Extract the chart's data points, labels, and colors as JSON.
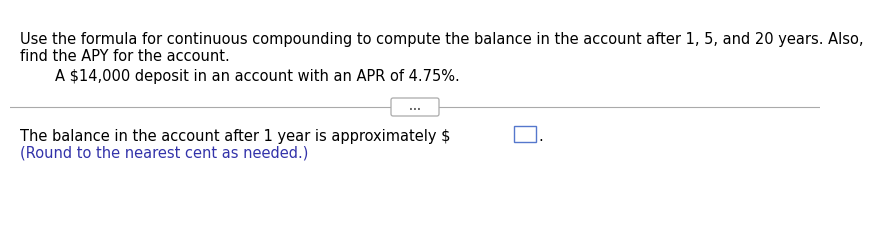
{
  "line1": "Use the formula for continuous compounding to compute the balance in the account after 1, 5, and 20 years. Also,",
  "line2": "find the APY for the account.",
  "indented_text": "A $14,000 deposit in an account with an APR of 4.75%.",
  "bottom_line1": "The balance in the account after 1 year is approximately $",
  "bottom_line2": "(Round to the nearest cent as needed.)",
  "dots_text": "...",
  "background_color": "#ffffff",
  "text_color": "#000000",
  "blue_text_color": "#3333aa",
  "divider_color": "#aaaaaa",
  "top_bar_color": "#3355bb",
  "input_box_color": "#ffffff",
  "input_box_edge": "#5577cc",
  "font_size_main": 10.5,
  "font_size_bottom": 10.5
}
